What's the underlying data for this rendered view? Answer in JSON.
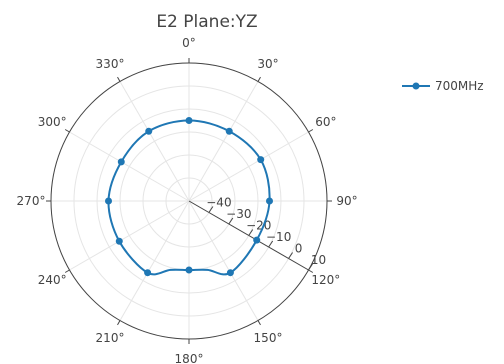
{
  "chart_data": {
    "type": "polar-line",
    "title": "E2 Plane:YZ",
    "angular_axis": {
      "direction": "clockwise",
      "rotation": "0° at top",
      "tick_labels": [
        "0°",
        "30°",
        "60°",
        "90°",
        "120°",
        "150°",
        "180°",
        "210°",
        "240°",
        "270°",
        "300°",
        "330°"
      ],
      "tick_values": [
        0,
        30,
        60,
        90,
        120,
        150,
        180,
        210,
        240,
        270,
        300,
        330
      ]
    },
    "radial_axis": {
      "range": [
        -50,
        10
      ],
      "tick_values": [
        -40,
        -30,
        -20,
        -10,
        0,
        10
      ],
      "tick_labels": [
        "−40",
        "−30",
        "−20",
        "−10",
        "0",
        "10"
      ],
      "axis_angle_deg": 120
    },
    "grid": true,
    "legend": {
      "placement": "top-right"
    },
    "series": [
      {
        "name": "700MHz",
        "color": "#1f77b4",
        "theta": [
          0,
          30,
          60,
          90,
          120,
          150,
          165,
          180,
          195,
          210,
          240,
          270,
          300,
          330
        ],
        "r": [
          -15,
          -15,
          -14,
          -15,
          -16,
          -14,
          -19,
          -20,
          -19,
          -14,
          -15,
          -15,
          -16,
          -15
        ]
      }
    ]
  }
}
